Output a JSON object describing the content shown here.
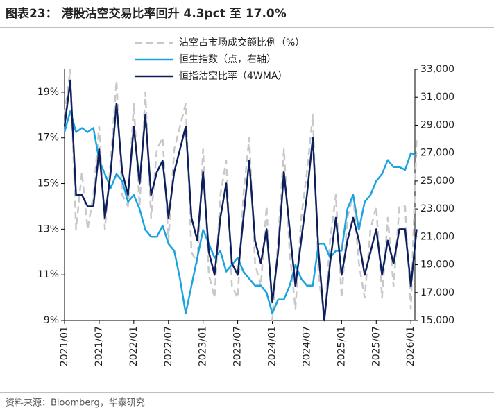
{
  "chart_data": {
    "type": "line",
    "title": "图表23： 港股沽空交易比率回升 4.3pct 至 17.0%",
    "source": "资料来源：Bloomberg，华泰研究",
    "categories": [
      "2021/01",
      null,
      null,
      null,
      null,
      null,
      "2021/07",
      null,
      null,
      null,
      null,
      null,
      "2022/01",
      null,
      null,
      null,
      null,
      null,
      "2022/07",
      null,
      null,
      null,
      null,
      null,
      "2023/01",
      null,
      null,
      null,
      null,
      null,
      "2023/07",
      null,
      null,
      null,
      null,
      null,
      "2024/01",
      null,
      null,
      null,
      null,
      null,
      "2024/07",
      null,
      null,
      null,
      null,
      null,
      "2025/01",
      null,
      null,
      null,
      null,
      null,
      "2025/07",
      null,
      null,
      null,
      null,
      null,
      "2026/01",
      null
    ],
    "series": [
      {
        "name": "沽空占市场成交额比例（%）",
        "color": "#c8c8c8",
        "dashed": true,
        "axis": "y",
        "values": [
          18.0,
          20.0,
          13.0,
          15.5,
          13.0,
          14.5,
          17.5,
          13.0,
          16.0,
          19.5,
          14.5,
          14.0,
          18.5,
          14.0,
          19.0,
          13.5,
          16.5,
          17.0,
          12.5,
          16.5,
          17.5,
          18.5,
          12.0,
          11.5,
          16.5,
          11.0,
          10.0,
          14.5,
          16.0,
          10.5,
          10.0,
          14.5,
          17.0,
          11.5,
          10.5,
          14.0,
          9.0,
          12.5,
          16.5,
          12.0,
          9.5,
          13.5,
          15.5,
          18.0,
          11.0,
          9.0,
          12.5,
          14.5,
          10.0,
          13.5,
          14.5,
          11.5,
          10.0,
          13.0,
          14.0,
          10.0,
          13.5,
          10.5,
          14.0,
          14.0,
          9.5,
          17.0
        ]
      },
      {
        "name": "恒生指数（点，右轴）",
        "color": "#1aa3e0",
        "axis": "y2",
        "values": [
          28500,
          30000,
          28500,
          28800,
          28500,
          28800,
          26500,
          25500,
          24500,
          25500,
          25000,
          23500,
          24000,
          23000,
          21500,
          21000,
          21000,
          21800,
          20500,
          20000,
          18000,
          15500,
          17500,
          19500,
          21500,
          20500,
          19500,
          20000,
          18500,
          19000,
          19500,
          18500,
          18000,
          17500,
          17500,
          17000,
          15500,
          16500,
          16500,
          17500,
          19000,
          18000,
          17500,
          17500,
          20500,
          20500,
          19500,
          20000,
          20000,
          23000,
          24000,
          21500,
          23500,
          24000,
          25000,
          25500,
          26500,
          26000,
          26000,
          25800,
          27000,
          26800
        ]
      },
      {
        "name": "恒指沽空比率（4WMA）",
        "color": "#0d1f5c",
        "axis": "y",
        "values": [
          17.5,
          19.5,
          14.5,
          14.5,
          14.0,
          14.0,
          16.5,
          13.5,
          15.5,
          18.5,
          15.5,
          14.5,
          17.5,
          15.0,
          18.0,
          14.5,
          15.5,
          16.0,
          13.5,
          15.5,
          16.5,
          17.5,
          13.5,
          12.5,
          15.5,
          12.0,
          11.0,
          13.5,
          15.0,
          11.5,
          11.0,
          13.5,
          16.0,
          12.5,
          11.5,
          13.0,
          9.8,
          12.0,
          15.5,
          13.0,
          10.5,
          12.5,
          14.5,
          17.0,
          12.0,
          9.0,
          11.5,
          13.5,
          11.0,
          12.5,
          13.5,
          12.5,
          11.0,
          12.0,
          13.0,
          11.0,
          12.5,
          11.5,
          13.0,
          13.0,
          10.5,
          13.0
        ]
      }
    ],
    "ylim": [
      9,
      20
    ],
    "yticks": [
      {
        "value": 9,
        "label": "9%"
      },
      {
        "value": 11,
        "label": "11%"
      },
      {
        "value": 13,
        "label": "13%"
      },
      {
        "value": 15,
        "label": "15%"
      },
      {
        "value": 17,
        "label": "17%"
      },
      {
        "value": 19,
        "label": "19%"
      }
    ],
    "y2lim": [
      15000,
      33000
    ],
    "y2ticks": [
      {
        "value": 15000,
        "label": "15,000"
      },
      {
        "value": 17000,
        "label": "17,000"
      },
      {
        "value": 19000,
        "label": "19,000"
      },
      {
        "value": 21000,
        "label": "21,000"
      },
      {
        "value": 23000,
        "label": "23,000"
      },
      {
        "value": 25000,
        "label": "25,000"
      },
      {
        "value": 27000,
        "label": "27,000"
      },
      {
        "value": 29000,
        "label": "29,000"
      },
      {
        "value": 31000,
        "label": "31,000"
      },
      {
        "value": 33000,
        "label": "33,000"
      }
    ],
    "legend": "top"
  }
}
